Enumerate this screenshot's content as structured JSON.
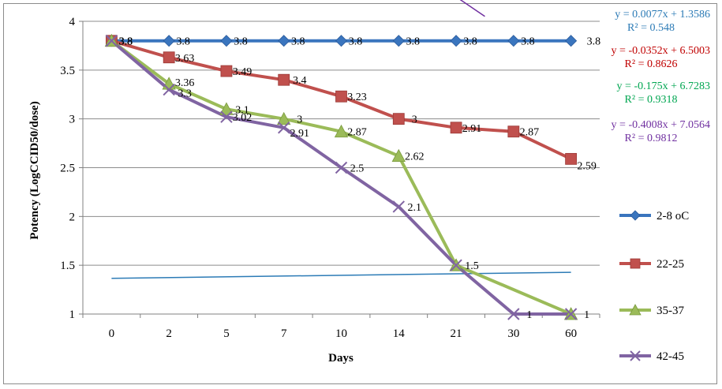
{
  "chart_data": {
    "type": "line",
    "xlabel": "Days",
    "ylabel": "Potency (LogCCID50/dose)",
    "ylim": [
      1,
      4
    ],
    "yticks": [
      "1",
      "1.5",
      "2",
      "2.5",
      "3",
      "3.5",
      "4"
    ],
    "categories": [
      "0",
      "2",
      "5",
      "7",
      "10",
      "14",
      "21",
      "30",
      "60"
    ],
    "grid": "horizontal",
    "legend_position": "right",
    "series": [
      {
        "name": "2-8 oC",
        "color": "#3a75be",
        "marker": "diamond",
        "values": [
          3.8,
          3.8,
          3.8,
          3.8,
          3.8,
          3.8,
          3.8,
          3.8,
          3.8
        ],
        "labels": [
          "3.8",
          "3.8",
          "3.8",
          "3.8",
          "3.8",
          "3.8",
          "3.8",
          "3.8",
          "3.8"
        ],
        "trendline": {
          "slope": 0.0077,
          "intercept": 1.3586,
          "equation": "y = 0.0077x + 1.3586",
          "r2": "R² = 0.548",
          "color": "#2c7bb6"
        }
      },
      {
        "name": "22-25",
        "color": "#c0504d",
        "marker": "square",
        "values": [
          3.8,
          3.63,
          3.49,
          3.4,
          3.23,
          3.0,
          2.91,
          2.87,
          2.59
        ],
        "labels": [
          "3.8",
          "3.63",
          "3.49",
          "3.4",
          "3.23",
          "3",
          "2.91",
          "2.87",
          "2.59"
        ],
        "trendline": {
          "slope": -0.0352,
          "intercept": 6.5003,
          "equation": "y = -0.0352x + 6.5003",
          "r2": "R² = 0.8626",
          "color": "#c00000"
        }
      },
      {
        "name": "35-37",
        "color": "#9bbb59",
        "marker": "triangle",
        "values": [
          3.8,
          3.36,
          3.1,
          3.0,
          2.87,
          2.62,
          1.5,
          null,
          1.0
        ],
        "labels": [
          "3.8",
          "3.36",
          "3.1",
          "3",
          "2.87",
          "2.62",
          "1.5",
          null,
          "1"
        ],
        "trendline": {
          "slope": -0.175,
          "intercept": 6.7283,
          "equation": "y = -0.175x + 6.7283",
          "r2": "R² = 0.9318",
          "color": "#00a651"
        }
      },
      {
        "name": "42-45",
        "color": "#8064a2",
        "marker": "x",
        "values": [
          3.8,
          3.3,
          3.02,
          2.91,
          2.5,
          2.1,
          1.5,
          1.0,
          1.0
        ],
        "labels": [
          "3.8",
          "3.3",
          "3.02",
          "2.91",
          "2.5",
          "2.1",
          null,
          "1",
          null
        ],
        "trendline": {
          "slope": -0.4008,
          "intercept": 7.0564,
          "equation": "y = -0.4008x + 7.0564",
          "r2": "R² = 0.9812",
          "color": "#7030a0"
        }
      }
    ]
  }
}
